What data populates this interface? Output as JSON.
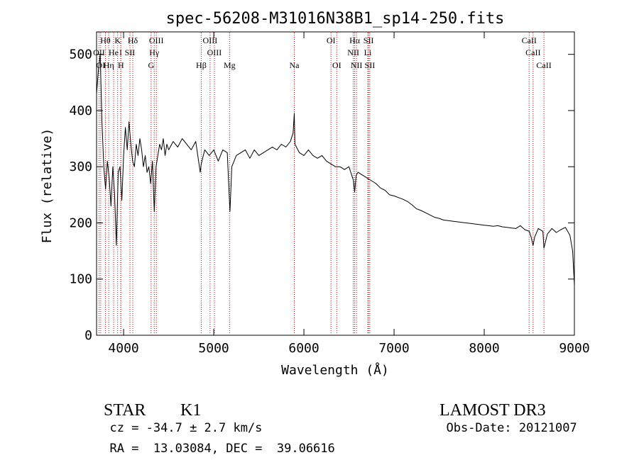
{
  "chart_data": {
    "type": "line",
    "title": "spec-56208-M31016N38B1_sp14-250.fits",
    "xlabel": "Wavelength (Å)",
    "ylabel": "Flux (relative)",
    "xlim": [
      3700,
      9000
    ],
    "ylim": [
      0,
      540
    ],
    "x_ticks": [
      4000,
      5000,
      6000,
      7000,
      8000,
      9000
    ],
    "y_ticks": [
      0,
      100,
      200,
      300,
      400,
      500
    ],
    "grid": false,
    "line_color": "#000000",
    "marker_line_color": "#cc0000",
    "series": [
      {
        "x": [
          3700,
          3720,
          3740,
          3760,
          3780,
          3800,
          3820,
          3840,
          3860,
          3880,
          3900,
          3920,
          3940,
          3960,
          3980,
          4000,
          4020,
          4040,
          4060,
          4080,
          4100,
          4120,
          4140,
          4160,
          4180,
          4200,
          4220,
          4240,
          4260,
          4280,
          4300,
          4320,
          4340,
          4360,
          4380,
          4400,
          4420,
          4440,
          4460,
          4480,
          4500,
          4550,
          4600,
          4650,
          4700,
          4750,
          4800,
          4850,
          4861,
          4900,
          4950,
          5000,
          5050,
          5100,
          5150,
          5180,
          5200,
          5250,
          5300,
          5350,
          5400,
          5450,
          5500,
          5550,
          5600,
          5650,
          5700,
          5750,
          5800,
          5850,
          5880,
          5893,
          5900,
          5950,
          6000,
          6050,
          6100,
          6150,
          6200,
          6250,
          6300,
          6350,
          6400,
          6450,
          6500,
          6550,
          6563,
          6580,
          6600,
          6650,
          6700,
          6750,
          6800,
          6850,
          6900,
          6950,
          7000,
          7050,
          7100,
          7150,
          7200,
          7250,
          7300,
          7350,
          7400,
          7450,
          7500,
          7550,
          7600,
          7650,
          7700,
          7750,
          7800,
          7850,
          7900,
          7950,
          8000,
          8050,
          8100,
          8150,
          8200,
          8250,
          8300,
          8350,
          8400,
          8450,
          8500,
          8520,
          8542,
          8560,
          8600,
          8650,
          8662,
          8700,
          8750,
          8800,
          8850,
          8900,
          8950,
          8980,
          9000
        ],
        "values": [
          430,
          470,
          500,
          380,
          300,
          260,
          310,
          280,
          230,
          300,
          250,
          160,
          290,
          300,
          240,
          320,
          370,
          330,
          380,
          340,
          310,
          300,
          340,
          320,
          350,
          330,
          300,
          320,
          290,
          300,
          270,
          310,
          220,
          300,
          320,
          340,
          330,
          350,
          320,
          340,
          330,
          345,
          335,
          350,
          340,
          330,
          345,
          290,
          305,
          330,
          320,
          330,
          310,
          330,
          325,
          220,
          300,
          320,
          325,
          330,
          315,
          330,
          320,
          325,
          330,
          335,
          330,
          340,
          335,
          345,
          360,
          395,
          340,
          325,
          320,
          330,
          320,
          315,
          320,
          310,
          305,
          300,
          300,
          295,
          300,
          275,
          255,
          285,
          290,
          285,
          280,
          275,
          270,
          262,
          258,
          250,
          248,
          245,
          242,
          238,
          232,
          225,
          222,
          218,
          214,
          210,
          208,
          205,
          204,
          203,
          202,
          201,
          200,
          199,
          198,
          197,
          196,
          195,
          194,
          195,
          193,
          192,
          191,
          190,
          195,
          188,
          185,
          175,
          160,
          175,
          190,
          185,
          155,
          180,
          190,
          183,
          188,
          192,
          178,
          150,
          90
        ]
      }
    ],
    "line_markers": [
      {
        "label": "Hθ",
        "x": 3798,
        "row": 1
      },
      {
        "label": "K",
        "x": 3934,
        "row": 1
      },
      {
        "label": "Hδ",
        "x": 4102,
        "row": 1
      },
      {
        "label": "OIII",
        "x": 4363,
        "row": 1
      },
      {
        "label": "OIII",
        "x": 4959,
        "row": 1
      },
      {
        "label": "OI",
        "x": 6300,
        "row": 1
      },
      {
        "label": "Hα",
        "x": 6563,
        "row": 1
      },
      {
        "label": "SII",
        "x": 6717,
        "row": 1
      },
      {
        "label": "CaII",
        "x": 8498,
        "row": 1
      },
      {
        "label": "OII",
        "x": 3727,
        "row": 2
      },
      {
        "label": "He",
        "x": 3889,
        "row": 2
      },
      {
        "label": "I",
        "x": 3968,
        "row": 2
      },
      {
        "label": "SII",
        "x": 4070,
        "row": 2
      },
      {
        "label": "Hγ",
        "x": 4340,
        "row": 2
      },
      {
        "label": "OIII",
        "x": 5007,
        "row": 2
      },
      {
        "label": "NII",
        "x": 6548,
        "row": 2
      },
      {
        "label": "Li",
        "x": 6708,
        "row": 2
      },
      {
        "label": "CaII",
        "x": 8542,
        "row": 2
      },
      {
        "label": "OI",
        "x": 3746,
        "row": 3
      },
      {
        "label": "Hη",
        "x": 3835,
        "row": 3
      },
      {
        "label": "H",
        "x": 3970,
        "row": 3
      },
      {
        "label": "G",
        "x": 4305,
        "row": 3
      },
      {
        "label": "Hβ",
        "x": 4861,
        "row": 3
      },
      {
        "label": "Mg",
        "x": 5175,
        "row": 3
      },
      {
        "label": "Na",
        "x": 5893,
        "row": 3
      },
      {
        "label": "OI",
        "x": 6364,
        "row": 3
      },
      {
        "label": "NII",
        "x": 6583,
        "row": 3
      },
      {
        "label": "SII",
        "x": 6731,
        "row": 3
      },
      {
        "label": "CaII",
        "x": 8662,
        "row": 3
      }
    ]
  },
  "info": {
    "class": "STAR",
    "subclass": "K1",
    "survey": "LAMOST DR3",
    "cz": "cz = -34.7 ± 2.7 km/s",
    "obs_date": "Obs-Date: 20121007",
    "radec": "RA =  13.03084, DEC =  39.06616"
  }
}
